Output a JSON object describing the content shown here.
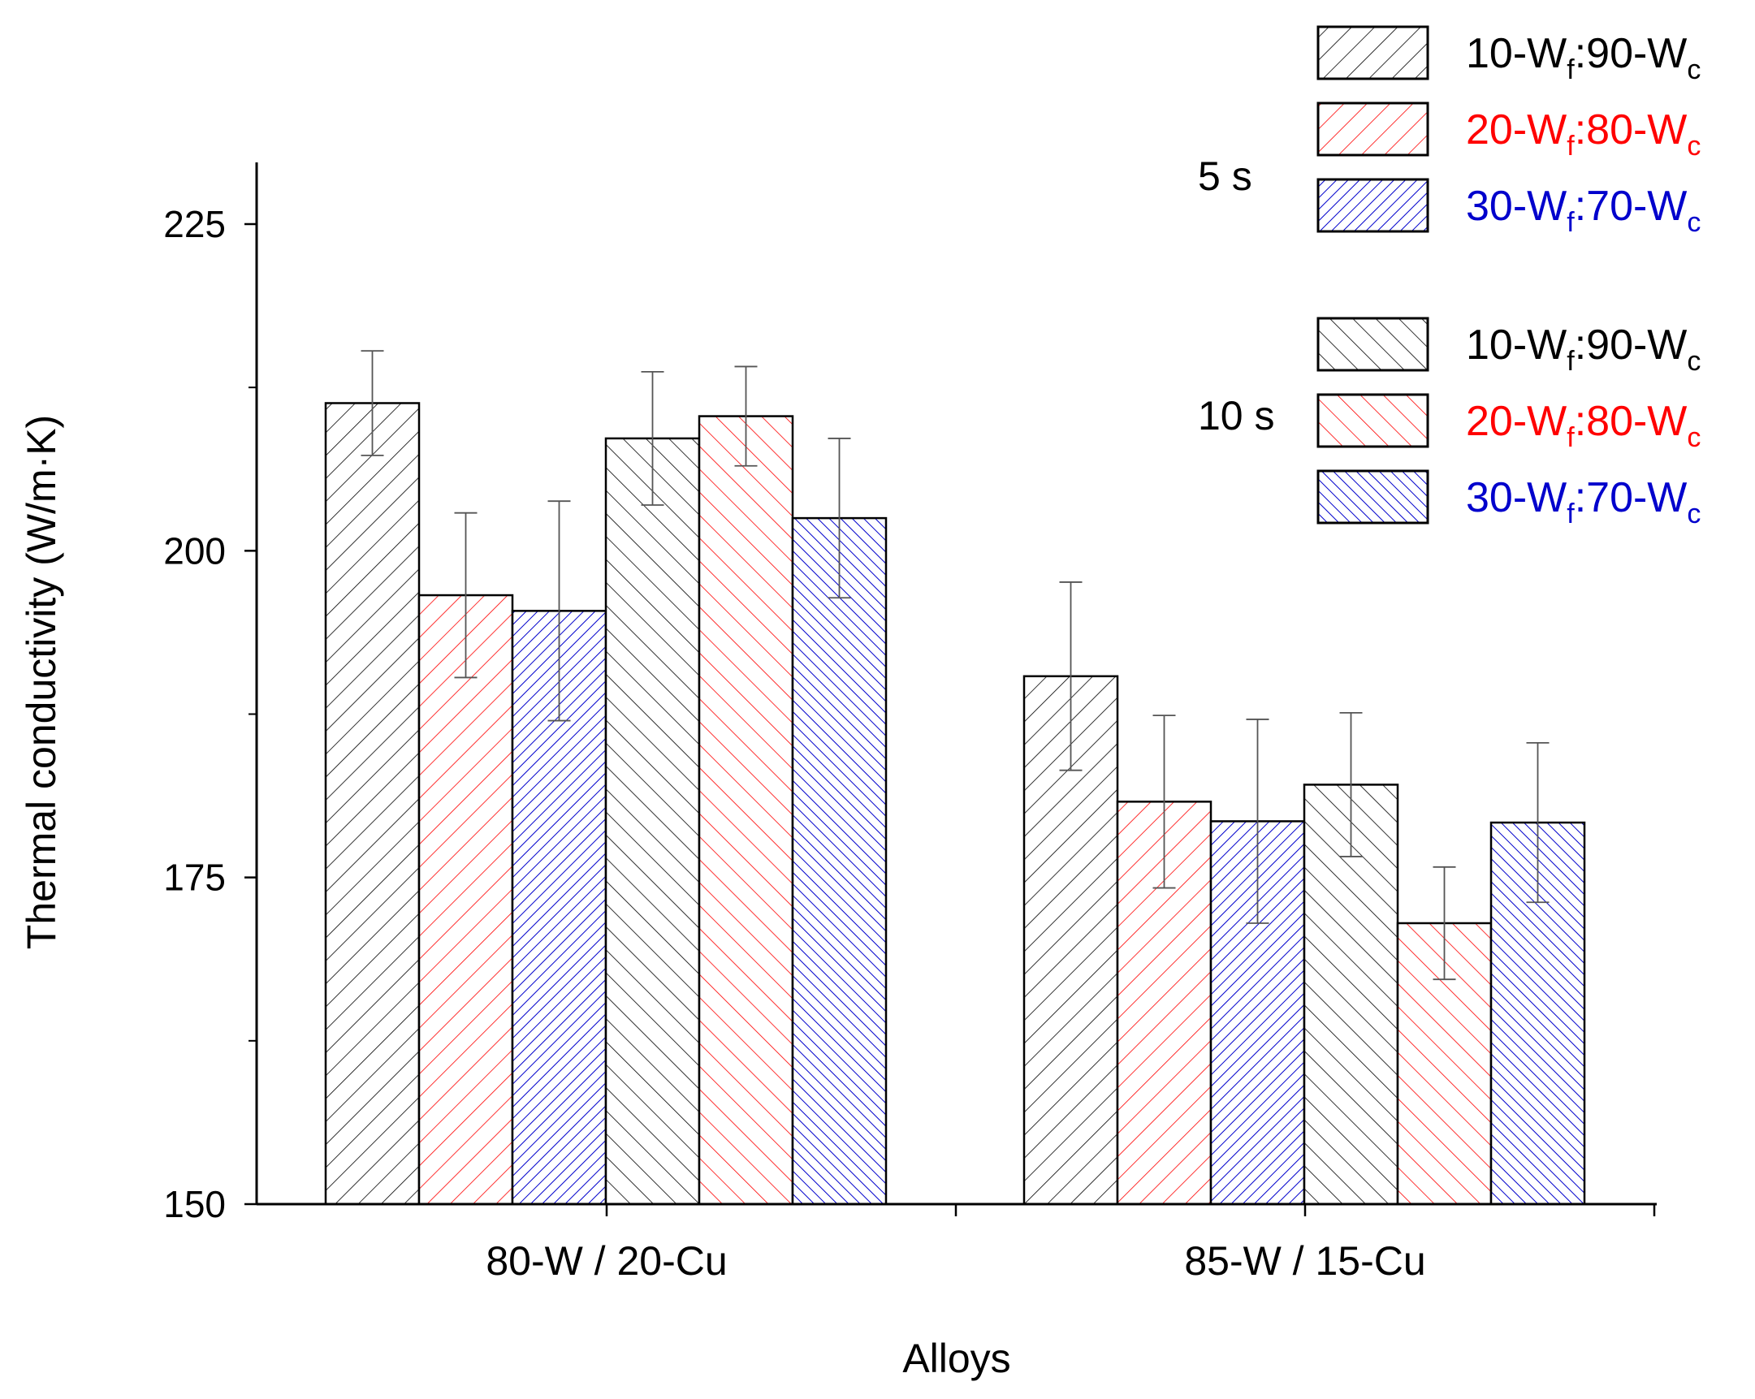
{
  "chart_data": {
    "type": "bar",
    "xlabel": "Alloys",
    "ylabel": "Thermal conductivity (W/m·K)",
    "ylim": [
      150,
      230
    ],
    "yticks": [
      150,
      175,
      200,
      225
    ],
    "ytick_labels": [
      "150",
      "175",
      "200",
      "225"
    ],
    "categories": [
      "80-W / 20-Cu",
      "85-W / 15-Cu"
    ],
    "series": [
      {
        "name": "5 s · 10-Wf:90-Wc",
        "time": "5 s",
        "color": "#000000",
        "hatch": "back",
        "values": [
          211.3,
          190.4
        ],
        "errors": [
          4.0,
          7.2
        ]
      },
      {
        "name": "5 s · 20-Wf:80-Wc",
        "time": "5 s",
        "color": "#ff0000",
        "hatch": "back",
        "values": [
          196.6,
          180.8
        ],
        "errors": [
          6.3,
          6.6
        ]
      },
      {
        "name": "5 s · 30-Wf:70-Wc",
        "time": "5 s",
        "color": "#0000cc",
        "hatch": "back-dense",
        "values": [
          195.4,
          179.3
        ],
        "errors": [
          8.4,
          7.8
        ]
      },
      {
        "name": "10 s · 10-Wf:90-Wc",
        "time": "10 s",
        "color": "#000000",
        "hatch": "fwd",
        "values": [
          208.6,
          182.1
        ],
        "errors": [
          5.1,
          5.5
        ]
      },
      {
        "name": "10 s · 20-Wf:80-Wc",
        "time": "10 s",
        "color": "#ff0000",
        "hatch": "fwd",
        "values": [
          210.3,
          171.5
        ],
        "errors": [
          3.8,
          4.3
        ]
      },
      {
        "name": "10 s · 30-Wf:70-Wc",
        "time": "10 s",
        "color": "#0000cc",
        "hatch": "fwd-dense",
        "values": [
          202.5,
          179.2
        ],
        "errors": [
          6.1,
          6.1
        ]
      }
    ],
    "legend": {
      "placement": "top-right",
      "groups": [
        {
          "label": "5 s",
          "entries": [
            {
              "pre": "10-W",
              "sub1": "f",
              "mid": ":90-W",
              "sub2": "c",
              "color": "#000000",
              "hatch": "back"
            },
            {
              "pre": "20-W",
              "sub1": "f",
              "mid": ":80-W",
              "sub2": "c",
              "color": "#ff0000",
              "hatch": "back"
            },
            {
              "pre": "30-W",
              "sub1": "f",
              "mid": ":70-W",
              "sub2": "c",
              "color": "#0000cc",
              "hatch": "back-dense"
            }
          ]
        },
        {
          "label": "10 s",
          "entries": [
            {
              "pre": "10-W",
              "sub1": "f",
              "mid": ":90-W",
              "sub2": "c",
              "color": "#000000",
              "hatch": "fwd"
            },
            {
              "pre": "20-W",
              "sub1": "f",
              "mid": ":80-W",
              "sub2": "c",
              "color": "#ff0000",
              "hatch": "fwd"
            },
            {
              "pre": "30-W",
              "sub1": "f",
              "mid": ":70-W",
              "sub2": "c",
              "color": "#0000cc",
              "hatch": "fwd-dense"
            }
          ]
        }
      ]
    }
  }
}
